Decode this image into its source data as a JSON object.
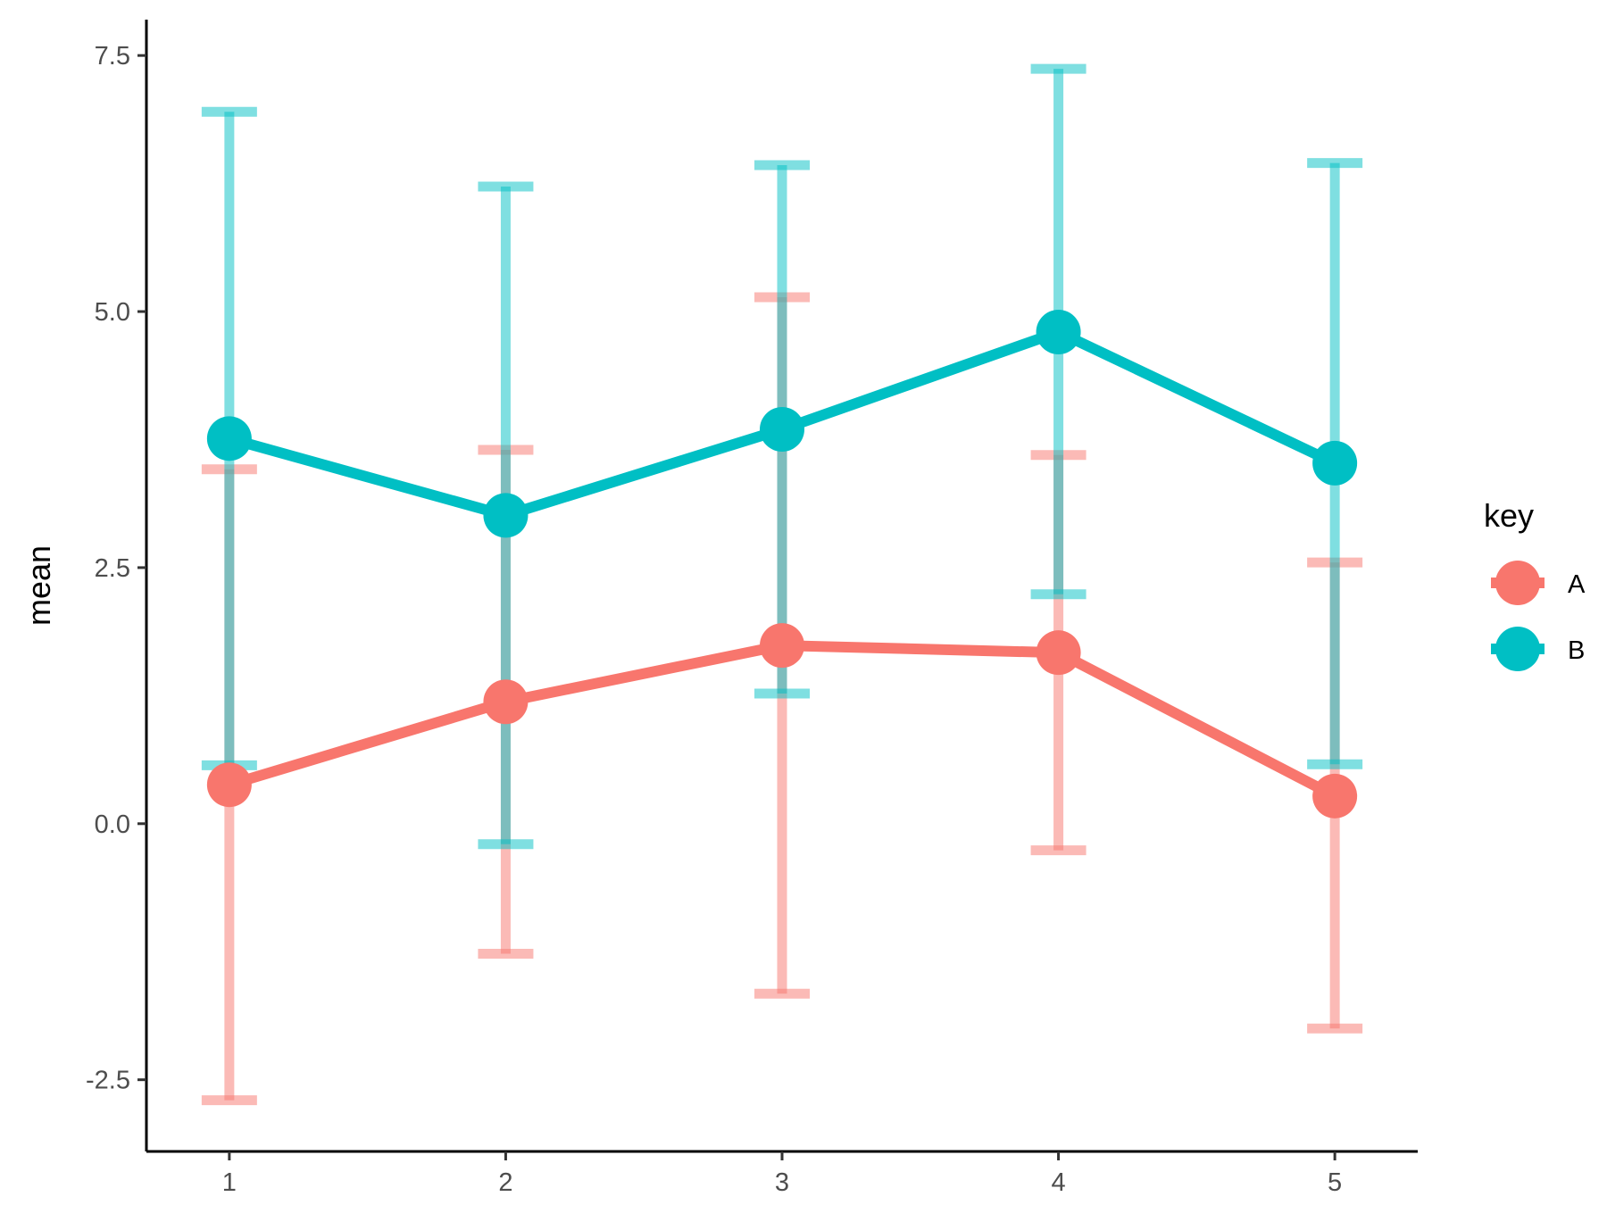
{
  "chart_data": {
    "type": "line",
    "title": "",
    "xlabel": "",
    "ylabel": "mean",
    "x": [
      1,
      2,
      3,
      4,
      5
    ],
    "x_tick_labels": [
      "1",
      "2",
      "3",
      "4",
      "5"
    ],
    "xlim": [
      0.7,
      5.3
    ],
    "ylim": [
      -3.2,
      7.85
    ],
    "y_ticks": [
      -2.5,
      0.0,
      2.5,
      5.0,
      7.5
    ],
    "y_tick_labels": [
      "-2.5",
      "0.0",
      "2.5",
      "5.0",
      "7.5"
    ],
    "grid": false,
    "legend": {
      "title": "key",
      "position": "right"
    },
    "series": [
      {
        "name": "A",
        "color": "#F8766D",
        "values": [
          0.38,
          1.19,
          1.74,
          1.67,
          0.27
        ],
        "error_low": [
          -2.7,
          -1.27,
          -1.66,
          -0.26,
          -2.0
        ],
        "error_high": [
          3.46,
          3.65,
          5.14,
          3.6,
          2.55
        ]
      },
      {
        "name": "B",
        "color": "#00BFC4",
        "values": [
          3.76,
          3.01,
          3.85,
          4.8,
          3.52
        ],
        "error_low": [
          0.57,
          -0.2,
          1.27,
          2.24,
          0.58
        ],
        "error_high": [
          6.95,
          6.22,
          6.43,
          7.37,
          6.45
        ]
      }
    ]
  }
}
